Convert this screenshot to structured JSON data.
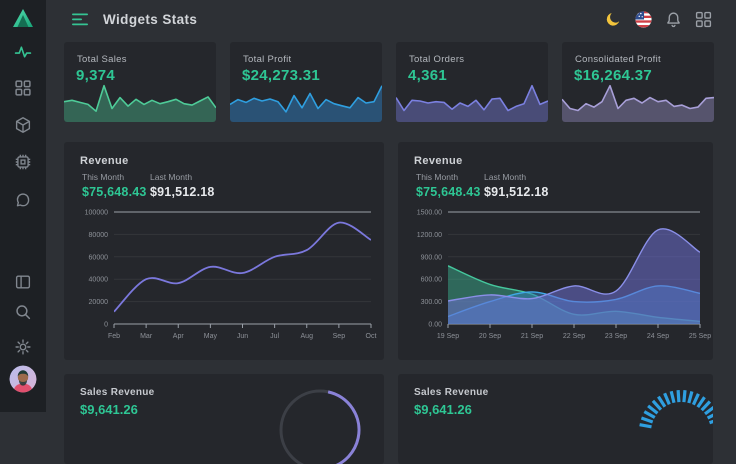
{
  "app": {
    "title": "Widgets Stats"
  },
  "sidebar": {
    "icons": [
      "logo-triangle",
      "activity-icon",
      "dashboard-grid-icon",
      "package-box-icon",
      "cpu-icon",
      "chat-bubble-icon",
      "layout-panel-icon",
      "search-icon",
      "settings-gear-icon",
      "user-avatar"
    ],
    "active_item": "activity"
  },
  "header": {
    "right_icons": [
      "dark-mode-moon-icon",
      "us-flag-icon",
      "notifications-bell-icon",
      "apps-grid-icon"
    ]
  },
  "colors": {
    "accent_green": "#2ec694",
    "spark_blue": "#2f9fe0",
    "spark_indigo": "#7b80e0",
    "spark_violet": "#a89fd8",
    "line_indigo": "#7b78dd"
  },
  "stat_cards": [
    {
      "label": "Total Sales",
      "value": "9,374",
      "color": "#4ecb98",
      "fill": "rgba(78,203,152,0.38)",
      "spark": [
        48,
        52,
        46,
        40,
        20,
        95,
        28,
        60,
        35,
        55,
        40,
        52,
        42,
        48,
        55,
        42,
        38,
        50,
        62,
        30
      ]
    },
    {
      "label": "Total Profit",
      "value": "$24,273.31",
      "color": "#2f9fe0",
      "fill": "rgba(47,125,190,0.5)",
      "spark": [
        40,
        54,
        46,
        58,
        50,
        56,
        48,
        18,
        66,
        30,
        72,
        28,
        54,
        42,
        36,
        30,
        60,
        44,
        48,
        95
      ]
    },
    {
      "label": "Total Orders",
      "value": "4,361",
      "color": "#7b80e0",
      "fill": "rgba(123,128,224,0.42)",
      "spark": [
        60,
        22,
        52,
        50,
        44,
        48,
        46,
        26,
        44,
        34,
        52,
        24,
        56,
        58,
        22,
        34,
        42,
        95,
        40,
        50
      ]
    },
    {
      "label": "Consolidated Profit",
      "value": "$16,264.37",
      "color": "#a89fd8",
      "fill": "rgba(168,159,216,0.38)",
      "spark": [
        55,
        28,
        22,
        42,
        32,
        48,
        95,
        28,
        52,
        58,
        44,
        60,
        48,
        52,
        34,
        38,
        28,
        32,
        58,
        60
      ]
    }
  ],
  "revenue_left": {
    "title": "Revenue",
    "this_month_label": "This Month",
    "this_month_value": "$75,648.43",
    "last_month_label": "Last Month",
    "last_month_value": "$91,512.18",
    "chart_data": {
      "type": "line",
      "x": [
        "Feb",
        "Mar",
        "Apr",
        "May",
        "Jun",
        "Jul",
        "Aug",
        "Sep",
        "Oct"
      ],
      "series": [
        {
          "name": "revenue",
          "color": "#7b78dd",
          "values": [
            11000,
            40000,
            36500,
            51000,
            45500,
            60000,
            66000,
            90500,
            75000
          ]
        }
      ],
      "ylim": [
        0,
        100000
      ],
      "yticks": [
        0,
        20000,
        40000,
        60000,
        80000,
        100000
      ],
      "ytick_labels": [
        "0",
        "20000",
        "40000",
        "60000",
        "80000",
        "100000"
      ],
      "grid": "horizontal",
      "legend": "none"
    }
  },
  "revenue_right": {
    "title": "Revenue",
    "this_month_label": "This Month",
    "this_month_value": "$75,648.43",
    "last_month_label": "Last Month",
    "last_month_value": "$91,512.18",
    "chart_data": {
      "type": "area",
      "x": [
        "19 Sep",
        "20 Sep",
        "21 Sep",
        "22 Sep",
        "23 Sep",
        "24 Sep",
        "25 Sep"
      ],
      "series": [
        {
          "name": "series-green",
          "color": "#45c79d",
          "fill": "rgba(58,169,138,0.5)",
          "values": [
            780,
            530,
            400,
            130,
            170,
            90,
            35
          ]
        },
        {
          "name": "series-blue",
          "color": "#3fa9e8",
          "fill": "rgba(52,130,190,0.5)",
          "values": [
            100,
            300,
            430,
            300,
            330,
            510,
            410
          ]
        },
        {
          "name": "series-indigo",
          "color": "#8a8fe8",
          "fill": "rgba(108,110,205,0.55)",
          "values": [
            310,
            390,
            340,
            510,
            440,
            1260,
            960
          ]
        }
      ],
      "ylim": [
        0,
        1500
      ],
      "yticks": [
        0,
        300,
        600,
        900,
        1200,
        1500
      ],
      "ytick_labels": [
        "0.00",
        "300.00",
        "600.00",
        "900.00",
        "1200.00",
        "1500.00"
      ],
      "grid": "horizontal",
      "legend": "none"
    }
  },
  "bottom_cards": [
    {
      "title": "Sales Revenue",
      "value": "$9,641.26",
      "widget": "donut",
      "color": "#8a82d8",
      "track": "#3c3f46"
    },
    {
      "title": "Sales Revenue",
      "value": "$9,641.26",
      "widget": "gauge",
      "color": "#2f9fe0"
    }
  ]
}
